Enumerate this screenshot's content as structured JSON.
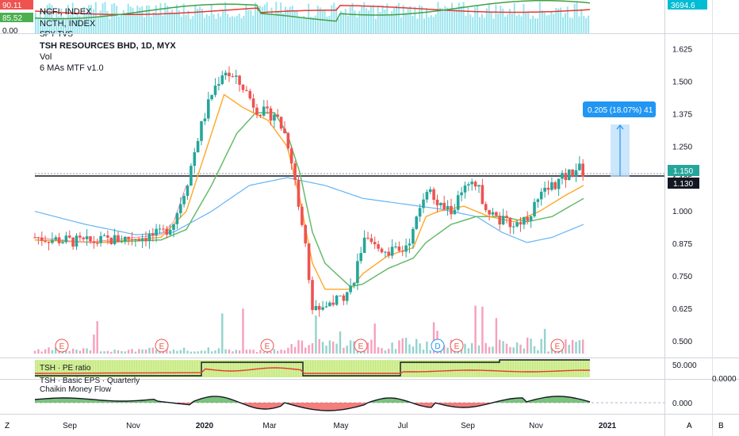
{
  "header_strip": {
    "badges": [
      {
        "value": "90.11",
        "color": "#ef5350"
      },
      {
        "value": "85.52",
        "color": "#4caf50"
      },
      {
        "value": "0.00",
        "color": "#ffffff"
      }
    ],
    "index_labels": [
      "NCFI, INDEX",
      "NCTH, INDEX",
      "SPY TVS"
    ],
    "right_value": "3694.6"
  },
  "main": {
    "title": "TSH RESOURCES BHD, 1D, MYX",
    "indicators": [
      "Vol",
      "6 MAs MTF v1.0"
    ],
    "last_price": "1.150",
    "level_price": "1.130",
    "measure": "0.205 (18.07%) 41",
    "earnings_marker": "E",
    "dividend_marker": "D"
  },
  "pe_pane": {
    "labels": [
      "TSH · PE ratio",
      "TSH · Basic EPS · Quarterly"
    ],
    "right_value": "50.000",
    "right_value2": "0.0000"
  },
  "cmf_pane": {
    "label": "Chaikin Money Flow",
    "right_value": "0.000"
  },
  "footer": {
    "left_button": "Z",
    "right_buttons": [
      "A",
      "B"
    ]
  },
  "chart_data": {
    "type": "candlestick",
    "title": "TSH RESOURCES BHD, 1D, MYX",
    "x_ticks": [
      "Sep",
      "Nov",
      "2020",
      "Mar",
      "May",
      "Jul",
      "Sep",
      "Nov",
      "2021"
    ],
    "y_ticks": [
      0.5,
      0.625,
      0.75,
      0.875,
      1.0,
      1.125,
      1.25,
      1.375,
      1.5,
      1.625
    ],
    "ylim": [
      0.44,
      1.68
    ],
    "close_path": [
      [
        0,
        0.9
      ],
      [
        4,
        0.89
      ],
      [
        8,
        0.88
      ],
      [
        12,
        0.89
      ],
      [
        16,
        0.9
      ],
      [
        20,
        0.91
      ],
      [
        22,
        0.96
      ],
      [
        24,
        1.1
      ],
      [
        26,
        1.3
      ],
      [
        28,
        1.45
      ],
      [
        30,
        1.55
      ],
      [
        31,
        1.52
      ],
      [
        33,
        1.48
      ],
      [
        35,
        1.4
      ],
      [
        37,
        1.37
      ],
      [
        38,
        1.38
      ],
      [
        40,
        1.28
      ],
      [
        41,
        1.15
      ],
      [
        43,
        0.85
      ],
      [
        44,
        0.62
      ],
      [
        46,
        0.64
      ],
      [
        48,
        0.66
      ],
      [
        50,
        0.7
      ],
      [
        51,
        0.78
      ],
      [
        52,
        0.88
      ],
      [
        54,
        0.86
      ],
      [
        56,
        0.85
      ],
      [
        58,
        0.84
      ],
      [
        60,
        0.92
      ],
      [
        62,
        1.1
      ],
      [
        64,
        1.02
      ],
      [
        66,
        1.0
      ],
      [
        68,
        1.08
      ],
      [
        70,
        1.1
      ],
      [
        72,
        1.0
      ],
      [
        74,
        0.96
      ],
      [
        76,
        0.95
      ],
      [
        78,
        0.98
      ],
      [
        80,
        1.05
      ],
      [
        82,
        1.1
      ],
      [
        84,
        1.13
      ],
      [
        86,
        1.17
      ],
      [
        87,
        1.15
      ]
    ],
    "ma_orange": [
      [
        0,
        0.89
      ],
      [
        10,
        0.88
      ],
      [
        20,
        0.9
      ],
      [
        24,
        1.0
      ],
      [
        28,
        1.3
      ],
      [
        30,
        1.45
      ],
      [
        33,
        1.4
      ],
      [
        37,
        1.35
      ],
      [
        40,
        1.25
      ],
      [
        42,
        1.05
      ],
      [
        44,
        0.8
      ],
      [
        46,
        0.7
      ],
      [
        50,
        0.7
      ],
      [
        52,
        0.76
      ],
      [
        56,
        0.83
      ],
      [
        60,
        0.86
      ],
      [
        62,
        0.98
      ],
      [
        64,
        1.0
      ],
      [
        68,
        1.02
      ],
      [
        72,
        0.98
      ],
      [
        76,
        0.96
      ],
      [
        80,
        1.0
      ],
      [
        84,
        1.06
      ],
      [
        87,
        1.1
      ]
    ],
    "ma_green": [
      [
        0,
        0.89
      ],
      [
        10,
        0.88
      ],
      [
        20,
        0.89
      ],
      [
        24,
        0.93
      ],
      [
        28,
        1.1
      ],
      [
        32,
        1.3
      ],
      [
        35,
        1.38
      ],
      [
        38,
        1.38
      ],
      [
        40,
        1.3
      ],
      [
        42,
        1.15
      ],
      [
        44,
        0.92
      ],
      [
        46,
        0.8
      ],
      [
        50,
        0.71
      ],
      [
        52,
        0.72
      ],
      [
        56,
        0.78
      ],
      [
        60,
        0.82
      ],
      [
        62,
        0.88
      ],
      [
        66,
        0.95
      ],
      [
        70,
        0.98
      ],
      [
        74,
        0.98
      ],
      [
        78,
        0.96
      ],
      [
        82,
        0.98
      ],
      [
        87,
        1.05
      ]
    ],
    "ma_blue": [
      [
        0,
        1.0
      ],
      [
        8,
        0.95
      ],
      [
        16,
        0.91
      ],
      [
        22,
        0.92
      ],
      [
        28,
        1.0
      ],
      [
        34,
        1.1
      ],
      [
        40,
        1.13
      ],
      [
        46,
        1.1
      ],
      [
        52,
        1.05
      ],
      [
        58,
        1.03
      ],
      [
        64,
        1.01
      ],
      [
        70,
        0.98
      ],
      [
        74,
        0.92
      ],
      [
        78,
        0.88
      ],
      [
        82,
        0.9
      ],
      [
        87,
        0.95
      ]
    ]
  }
}
